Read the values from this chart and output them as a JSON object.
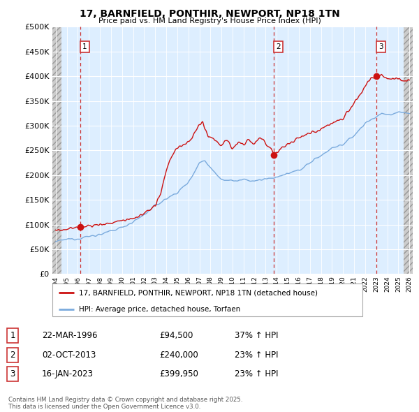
{
  "title": "17, BARNFIELD, PONTHIR, NEWPORT, NP18 1TN",
  "subtitle": "Price paid vs. HM Land Registry's House Price Index (HPI)",
  "yticks": [
    0,
    50000,
    100000,
    150000,
    200000,
    250000,
    300000,
    350000,
    400000,
    450000,
    500000
  ],
  "ytick_labels": [
    "£0",
    "£50K",
    "£100K",
    "£150K",
    "£200K",
    "£250K",
    "£300K",
    "£350K",
    "£400K",
    "£450K",
    "£500K"
  ],
  "xmin": 1993.7,
  "xmax": 2026.3,
  "ymin": 0,
  "ymax": 500000,
  "sale_dates": [
    1996.23,
    2013.75,
    2023.04
  ],
  "sale_prices": [
    94500,
    240000,
    399950
  ],
  "sale_labels": [
    "1",
    "2",
    "3"
  ],
  "hpi_color": "#7aaadd",
  "price_color": "#cc1111",
  "dashed_line_color": "#cc3333",
  "legend_label_price": "17, BARNFIELD, PONTHIR, NEWPORT, NP18 1TN (detached house)",
  "legend_label_hpi": "HPI: Average price, detached house, Torfaen",
  "table_rows": [
    [
      "1",
      "22-MAR-1996",
      "£94,500",
      "37% ↑ HPI"
    ],
    [
      "2",
      "02-OCT-2013",
      "£240,000",
      "23% ↑ HPI"
    ],
    [
      "3",
      "16-JAN-2023",
      "£399,950",
      "23% ↑ HPI"
    ]
  ],
  "footnote": "Contains HM Land Registry data © Crown copyright and database right 2025.\nThis data is licensed under the Open Government Licence v3.0.",
  "bg_chart": "#ddeeff",
  "grid_color": "#ffffff",
  "hatch_left_end": 1994.5,
  "hatch_right_start": 2025.5
}
